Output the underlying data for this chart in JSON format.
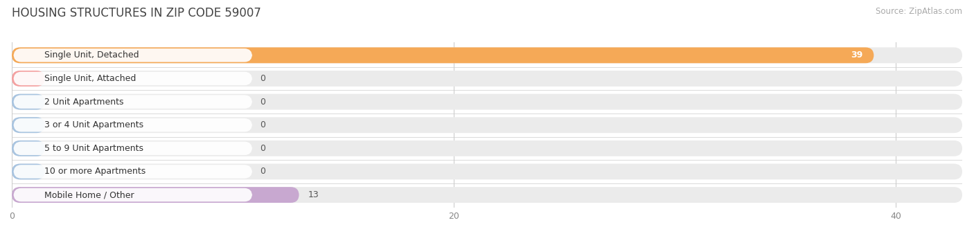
{
  "title": "HOUSING STRUCTURES IN ZIP CODE 59007",
  "source": "Source: ZipAtlas.com",
  "categories": [
    "Single Unit, Detached",
    "Single Unit, Attached",
    "2 Unit Apartments",
    "3 or 4 Unit Apartments",
    "5 to 9 Unit Apartments",
    "10 or more Apartments",
    "Mobile Home / Other"
  ],
  "values": [
    39,
    0,
    0,
    0,
    0,
    0,
    13
  ],
  "bar_colors": [
    "#f5a957",
    "#f4a0a0",
    "#a8c4e0",
    "#a8c4e0",
    "#a8c4e0",
    "#a8c4e0",
    "#c8a8d0"
  ],
  "bar_bg_color": "#ebebeb",
  "xlim": [
    0,
    43
  ],
  "xticks": [
    0,
    20,
    40
  ],
  "background_color": "#ffffff",
  "title_fontsize": 12,
  "source_fontsize": 8.5,
  "label_fontsize": 9,
  "value_fontsize": 9,
  "bar_height": 0.68,
  "bar_spacing": 1.0
}
